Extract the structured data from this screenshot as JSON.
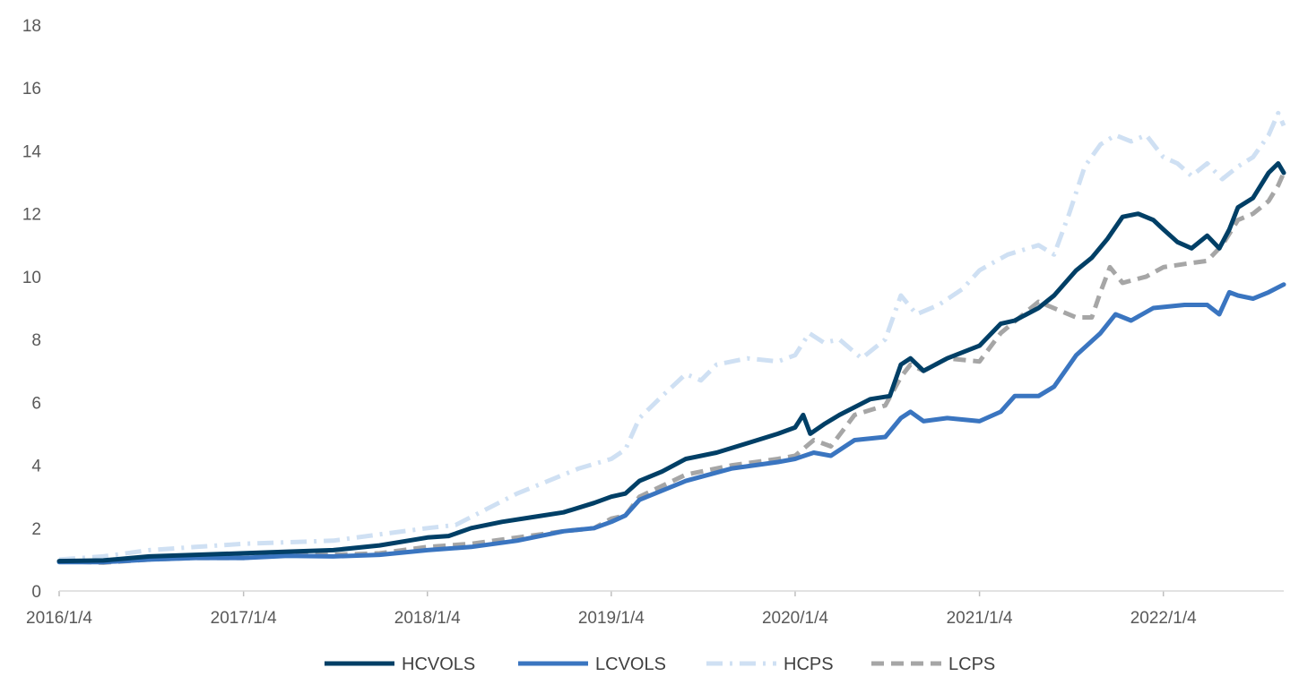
{
  "chart_data": {
    "type": "line",
    "title": "",
    "xlabel": "",
    "ylabel": "",
    "ylim": [
      0,
      18
    ],
    "yticks": [
      0,
      2,
      4,
      6,
      8,
      10,
      12,
      14,
      16,
      18
    ],
    "xlim": [
      "2016-01-04",
      "2022-08-31"
    ],
    "x_tick_labels": [
      "2016/1/4",
      "2017/1/4",
      "2018/1/4",
      "2019/1/4",
      "2020/1/4",
      "2021/1/4",
      "2022/1/4"
    ],
    "grid": false,
    "legend_position": "bottom",
    "series": [
      {
        "name": "HCVOLS",
        "color": "#003f66",
        "style": "solid",
        "points": [
          [
            "2016-01-04",
            0.95
          ],
          [
            "2016-04-01",
            0.97
          ],
          [
            "2016-07-01",
            1.1
          ],
          [
            "2016-10-01",
            1.15
          ],
          [
            "2017-01-04",
            1.2
          ],
          [
            "2017-04-01",
            1.25
          ],
          [
            "2017-07-01",
            1.3
          ],
          [
            "2017-10-01",
            1.45
          ],
          [
            "2018-01-04",
            1.7
          ],
          [
            "2018-02-15",
            1.75
          ],
          [
            "2018-04-01",
            2.0
          ],
          [
            "2018-06-01",
            2.2
          ],
          [
            "2018-08-01",
            2.35
          ],
          [
            "2018-10-01",
            2.5
          ],
          [
            "2018-12-01",
            2.8
          ],
          [
            "2019-01-04",
            3.0
          ],
          [
            "2019-02-01",
            3.1
          ],
          [
            "2019-03-01",
            3.5
          ],
          [
            "2019-04-15",
            3.8
          ],
          [
            "2019-06-01",
            4.2
          ],
          [
            "2019-08-01",
            4.4
          ],
          [
            "2019-10-01",
            4.7
          ],
          [
            "2019-12-01",
            5.0
          ],
          [
            "2020-01-04",
            5.2
          ],
          [
            "2020-01-20",
            5.6
          ],
          [
            "2020-02-03",
            5.0
          ],
          [
            "2020-03-01",
            5.3
          ],
          [
            "2020-04-01",
            5.6
          ],
          [
            "2020-06-01",
            6.1
          ],
          [
            "2020-07-10",
            6.2
          ],
          [
            "2020-08-01",
            7.2
          ],
          [
            "2020-08-20",
            7.4
          ],
          [
            "2020-09-15",
            7.0
          ],
          [
            "2020-11-01",
            7.4
          ],
          [
            "2021-01-04",
            7.8
          ],
          [
            "2021-02-15",
            8.5
          ],
          [
            "2021-03-15",
            8.6
          ],
          [
            "2021-05-01",
            9.0
          ],
          [
            "2021-06-01",
            9.4
          ],
          [
            "2021-07-15",
            10.2
          ],
          [
            "2021-08-15",
            10.6
          ],
          [
            "2021-09-15",
            11.2
          ],
          [
            "2021-10-15",
            11.9
          ],
          [
            "2021-11-15",
            12.0
          ],
          [
            "2021-12-15",
            11.8
          ],
          [
            "2022-01-04",
            11.5
          ],
          [
            "2022-02-01",
            11.1
          ],
          [
            "2022-03-01",
            10.9
          ],
          [
            "2022-04-01",
            11.3
          ],
          [
            "2022-04-25",
            10.9
          ],
          [
            "2022-05-15",
            11.5
          ],
          [
            "2022-06-01",
            12.2
          ],
          [
            "2022-07-01",
            12.5
          ],
          [
            "2022-08-01",
            13.3
          ],
          [
            "2022-08-20",
            13.6
          ],
          [
            "2022-08-31",
            13.3
          ]
        ]
      },
      {
        "name": "LCVOLS",
        "color": "#3a75c0",
        "style": "solid",
        "points": [
          [
            "2016-01-04",
            0.92
          ],
          [
            "2016-04-01",
            0.92
          ],
          [
            "2016-07-01",
            1.0
          ],
          [
            "2016-10-01",
            1.05
          ],
          [
            "2017-01-04",
            1.05
          ],
          [
            "2017-04-01",
            1.12
          ],
          [
            "2017-07-01",
            1.1
          ],
          [
            "2017-10-01",
            1.15
          ],
          [
            "2018-01-04",
            1.3
          ],
          [
            "2018-04-01",
            1.4
          ],
          [
            "2018-07-01",
            1.6
          ],
          [
            "2018-10-01",
            1.9
          ],
          [
            "2018-12-01",
            2.0
          ],
          [
            "2019-01-04",
            2.2
          ],
          [
            "2019-02-01",
            2.4
          ],
          [
            "2019-03-01",
            2.9
          ],
          [
            "2019-06-01",
            3.5
          ],
          [
            "2019-09-01",
            3.9
          ],
          [
            "2019-12-01",
            4.1
          ],
          [
            "2020-01-04",
            4.2
          ],
          [
            "2020-02-10",
            4.4
          ],
          [
            "2020-03-15",
            4.3
          ],
          [
            "2020-05-01",
            4.8
          ],
          [
            "2020-07-01",
            4.9
          ],
          [
            "2020-08-01",
            5.5
          ],
          [
            "2020-08-20",
            5.7
          ],
          [
            "2020-09-15",
            5.4
          ],
          [
            "2020-11-01",
            5.5
          ],
          [
            "2021-01-04",
            5.4
          ],
          [
            "2021-02-15",
            5.7
          ],
          [
            "2021-03-15",
            6.2
          ],
          [
            "2021-05-01",
            6.2
          ],
          [
            "2021-06-01",
            6.5
          ],
          [
            "2021-07-15",
            7.5
          ],
          [
            "2021-09-01",
            8.2
          ],
          [
            "2021-10-01",
            8.8
          ],
          [
            "2021-11-01",
            8.6
          ],
          [
            "2021-12-15",
            9.0
          ],
          [
            "2022-02-15",
            9.1
          ],
          [
            "2022-04-01",
            9.1
          ],
          [
            "2022-04-25",
            8.8
          ],
          [
            "2022-05-15",
            9.5
          ],
          [
            "2022-06-01",
            9.4
          ],
          [
            "2022-07-01",
            9.3
          ],
          [
            "2022-08-01",
            9.5
          ],
          [
            "2022-08-31",
            9.75
          ]
        ]
      },
      {
        "name": "HCPS",
        "color": "#cfe0f3",
        "style": "dash-dot",
        "points": [
          [
            "2016-01-04",
            1.0
          ],
          [
            "2016-04-01",
            1.1
          ],
          [
            "2016-07-01",
            1.3
          ],
          [
            "2016-10-01",
            1.4
          ],
          [
            "2017-01-04",
            1.5
          ],
          [
            "2017-04-01",
            1.55
          ],
          [
            "2017-07-01",
            1.6
          ],
          [
            "2017-10-01",
            1.8
          ],
          [
            "2018-01-04",
            2.0
          ],
          [
            "2018-03-01",
            2.1
          ],
          [
            "2018-05-01",
            2.6
          ],
          [
            "2018-07-01",
            3.1
          ],
          [
            "2018-09-01",
            3.5
          ],
          [
            "2018-11-01",
            3.9
          ],
          [
            "2019-01-04",
            4.2
          ],
          [
            "2019-02-01",
            4.5
          ],
          [
            "2019-03-01",
            5.5
          ],
          [
            "2019-04-15",
            6.2
          ],
          [
            "2019-06-01",
            6.9
          ],
          [
            "2019-07-01",
            6.7
          ],
          [
            "2019-08-01",
            7.2
          ],
          [
            "2019-10-01",
            7.4
          ],
          [
            "2019-12-01",
            7.3
          ],
          [
            "2020-01-04",
            7.5
          ],
          [
            "2020-02-01",
            8.2
          ],
          [
            "2020-03-01",
            7.9
          ],
          [
            "2020-04-01",
            8.0
          ],
          [
            "2020-05-15",
            7.4
          ],
          [
            "2020-07-01",
            8.0
          ],
          [
            "2020-08-01",
            9.4
          ],
          [
            "2020-09-01",
            8.8
          ],
          [
            "2020-10-15",
            9.1
          ],
          [
            "2020-12-01",
            9.6
          ],
          [
            "2021-01-04",
            10.2
          ],
          [
            "2021-03-01",
            10.7
          ],
          [
            "2021-05-01",
            11.0
          ],
          [
            "2021-06-01",
            10.7
          ],
          [
            "2021-07-01",
            12.0
          ],
          [
            "2021-08-01",
            13.5
          ],
          [
            "2021-09-01",
            14.2
          ],
          [
            "2021-10-01",
            14.5
          ],
          [
            "2021-11-01",
            14.3
          ],
          [
            "2021-12-01",
            14.5
          ],
          [
            "2022-01-04",
            13.8
          ],
          [
            "2022-02-01",
            13.6
          ],
          [
            "2022-03-01",
            13.2
          ],
          [
            "2022-04-01",
            13.6
          ],
          [
            "2022-05-01",
            13.1
          ],
          [
            "2022-06-01",
            13.5
          ],
          [
            "2022-07-01",
            13.8
          ],
          [
            "2022-08-01",
            14.5
          ],
          [
            "2022-08-20",
            15.2
          ],
          [
            "2022-08-31",
            14.8
          ]
        ]
      },
      {
        "name": "LCPS",
        "color": "#a6a6a6",
        "style": "dashed",
        "points": [
          [
            "2016-01-04",
            0.95
          ],
          [
            "2016-04-01",
            0.9
          ],
          [
            "2016-07-01",
            1.0
          ],
          [
            "2016-10-01",
            1.05
          ],
          [
            "2017-01-04",
            1.05
          ],
          [
            "2017-04-01",
            1.15
          ],
          [
            "2017-07-01",
            1.15
          ],
          [
            "2017-10-01",
            1.2
          ],
          [
            "2018-01-04",
            1.4
          ],
          [
            "2018-04-01",
            1.5
          ],
          [
            "2018-07-01",
            1.7
          ],
          [
            "2018-10-01",
            1.9
          ],
          [
            "2018-12-01",
            2.0
          ],
          [
            "2019-01-04",
            2.3
          ],
          [
            "2019-02-01",
            2.4
          ],
          [
            "2019-03-01",
            3.0
          ],
          [
            "2019-06-01",
            3.7
          ],
          [
            "2019-09-01",
            4.0
          ],
          [
            "2019-12-01",
            4.2
          ],
          [
            "2020-01-04",
            4.3
          ],
          [
            "2020-02-10",
            4.8
          ],
          [
            "2020-03-15",
            4.6
          ],
          [
            "2020-05-01",
            5.6
          ],
          [
            "2020-07-01",
            5.9
          ],
          [
            "2020-08-01",
            6.8
          ],
          [
            "2020-08-20",
            7.2
          ],
          [
            "2020-09-15",
            7.0
          ],
          [
            "2020-11-01",
            7.4
          ],
          [
            "2021-01-04",
            7.3
          ],
          [
            "2021-02-15",
            8.2
          ],
          [
            "2021-04-01",
            8.8
          ],
          [
            "2021-05-01",
            9.2
          ],
          [
            "2021-06-15",
            8.9
          ],
          [
            "2021-07-15",
            8.7
          ],
          [
            "2021-08-15",
            8.7
          ],
          [
            "2021-09-01",
            9.5
          ],
          [
            "2021-09-20",
            10.3
          ],
          [
            "2021-10-15",
            9.8
          ],
          [
            "2021-12-01",
            10.0
          ],
          [
            "2022-01-04",
            10.3
          ],
          [
            "2022-02-15",
            10.4
          ],
          [
            "2022-04-01",
            10.5
          ],
          [
            "2022-05-01",
            11.0
          ],
          [
            "2022-06-01",
            11.8
          ],
          [
            "2022-07-01",
            12.0
          ],
          [
            "2022-08-01",
            12.4
          ],
          [
            "2022-08-20",
            12.9
          ],
          [
            "2022-08-31",
            13.3
          ]
        ]
      }
    ]
  }
}
